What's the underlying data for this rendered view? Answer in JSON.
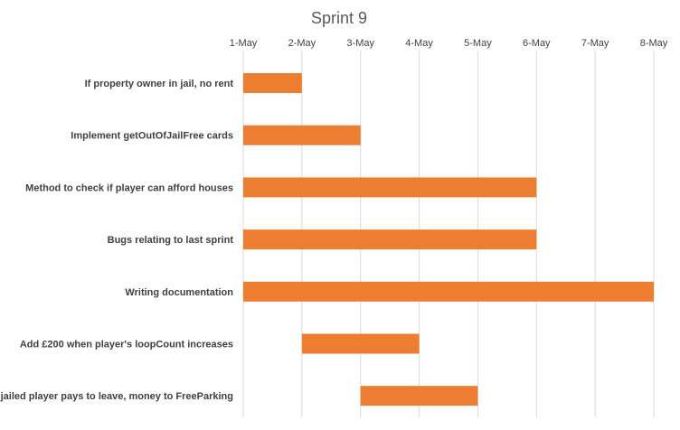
{
  "chart_data": {
    "type": "bar",
    "orientation": "horizontal-gantt",
    "title": "Sprint 9",
    "xlabel": "",
    "ylabel": "",
    "x_ticks": [
      "1-May",
      "2-May",
      "3-May",
      "4-May",
      "5-May",
      "6-May",
      "7-May",
      "8-May"
    ],
    "xlim": [
      "1-May",
      "8-May"
    ],
    "x_axis_position": "top",
    "grid": true,
    "legend": "none",
    "bar_color": "#ed7d31",
    "tasks": [
      {
        "label": "If property owner in jail, no rent",
        "start": "1-May",
        "end": "2-May"
      },
      {
        "label": "Implement getOutOfJailFree cards",
        "start": "1-May",
        "end": "3-May"
      },
      {
        "label": "Method to check if player can afford houses",
        "start": "1-May",
        "end": "6-May"
      },
      {
        "label": "Bugs relating to last sprint",
        "start": "1-May",
        "end": "6-May"
      },
      {
        "label": "Writing documentation",
        "start": "1-May",
        "end": "8-May"
      },
      {
        "label": "Add £200 when player's loopCount increases",
        "start": "2-May",
        "end": "4-May"
      },
      {
        "label": "If jailed player pays to leave, money to FreeParking",
        "start": "3-May",
        "end": "5-May"
      }
    ]
  }
}
